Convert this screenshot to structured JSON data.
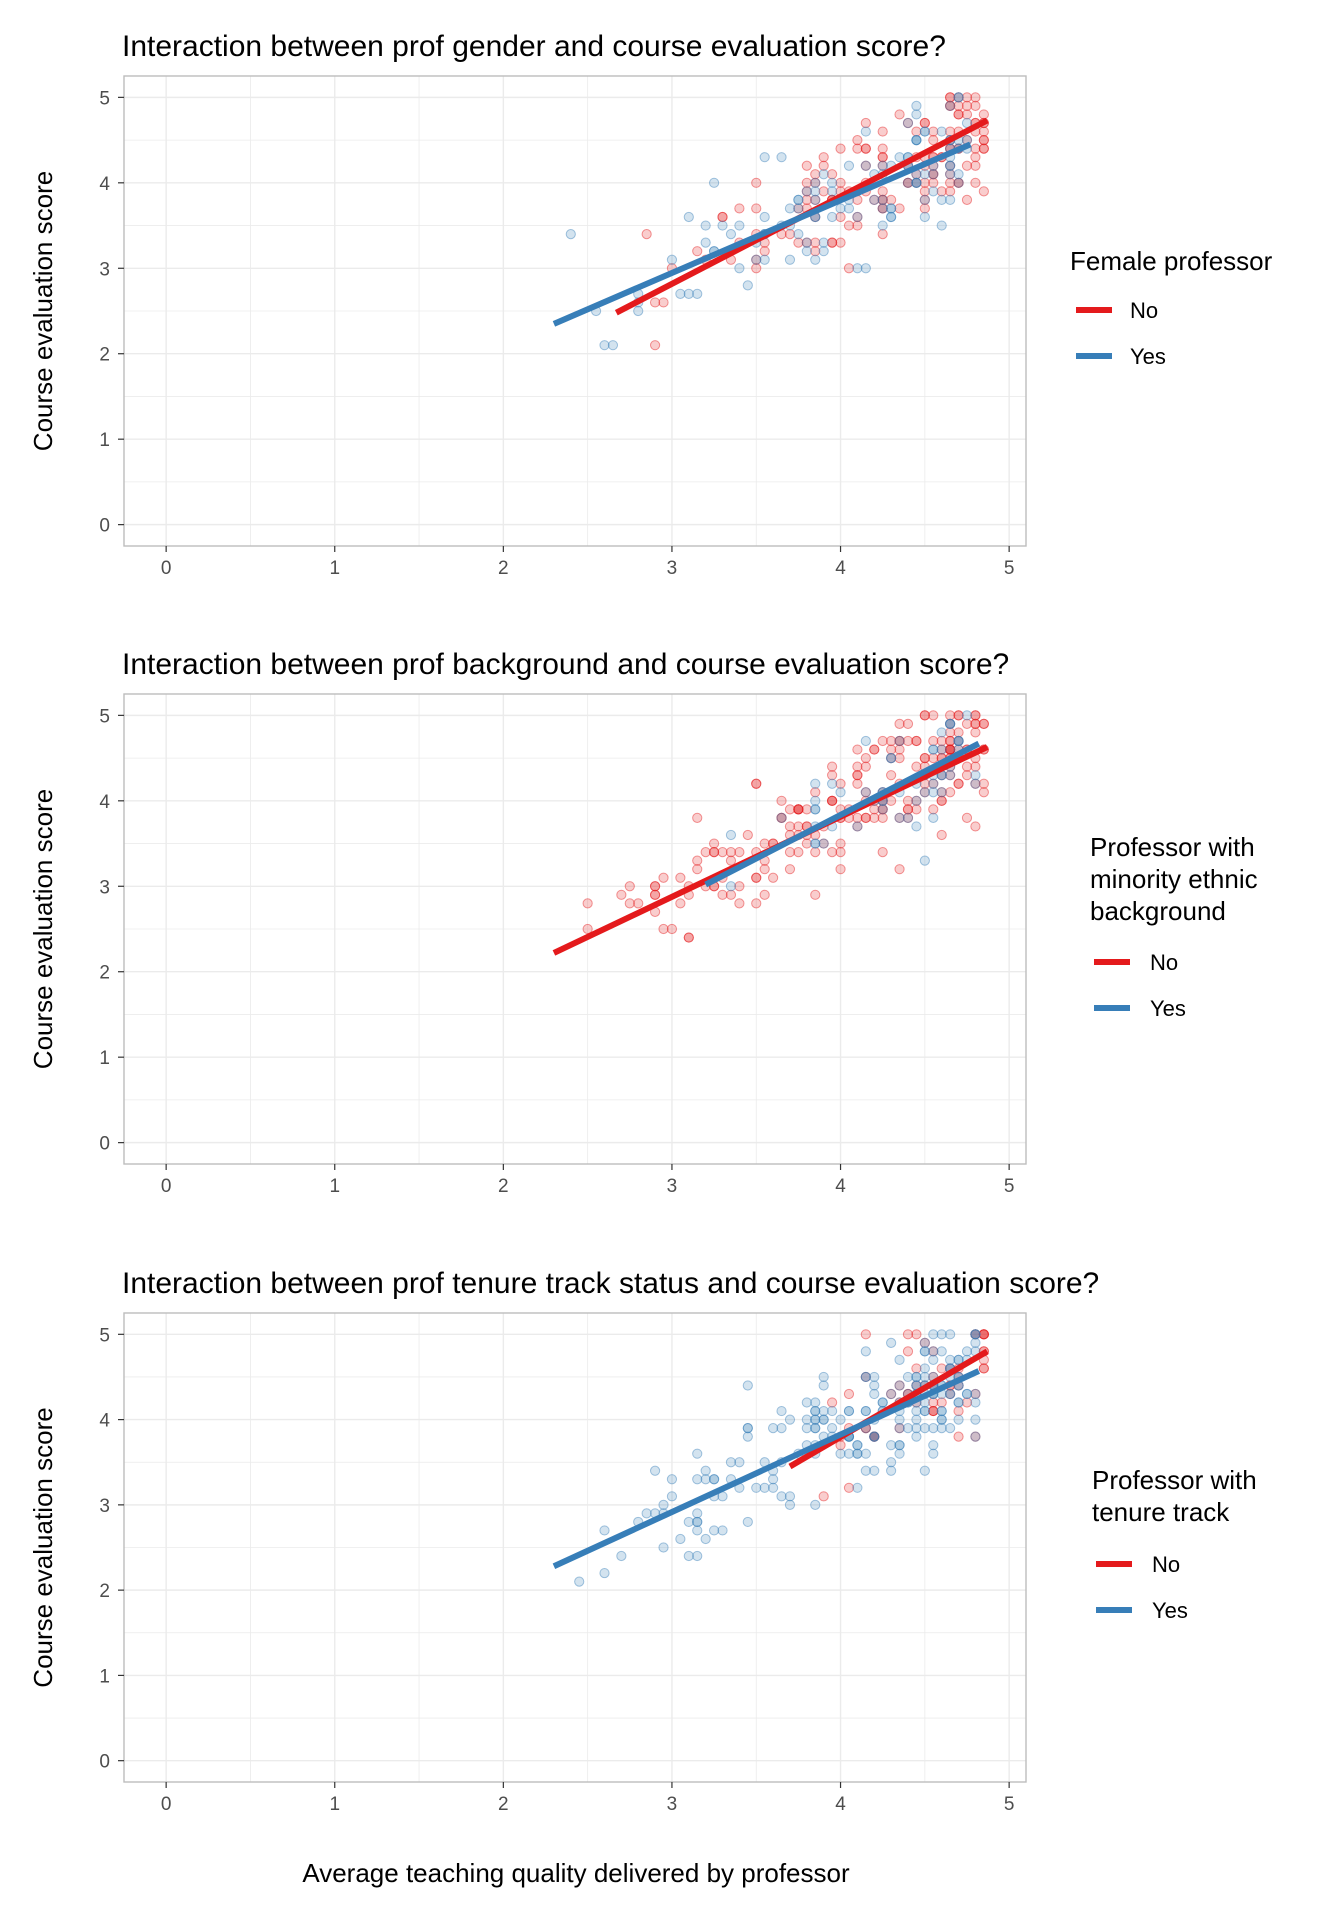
{
  "figure": {
    "xlabel": "Average teaching quality delivered by professor",
    "colors": {
      "no": "#e41a1c",
      "yes": "#377eb8",
      "grid": "#ebebeb",
      "panel_border": "#bdbdbd"
    }
  },
  "chart_data": [
    {
      "type": "scatter",
      "title": "Interaction between prof gender and course evaluation score?",
      "xlabel": "Average teaching quality delivered by professor",
      "ylabel": "Course evaluation score",
      "xlim": [
        -0.25,
        5.1
      ],
      "ylim": [
        -0.25,
        5.25
      ],
      "xticks": [
        "0",
        "1",
        "2",
        "3",
        "4",
        "5"
      ],
      "yticks": [
        "0",
        "1",
        "2",
        "3",
        "4",
        "5"
      ],
      "grid": true,
      "legend": {
        "title": [
          "Female professor"
        ],
        "position": "right",
        "items": [
          "No",
          "Yes"
        ]
      },
      "series": [
        {
          "name": "No",
          "color": "#e41a1c",
          "fit": [
            [
              2.67,
              2.48
            ],
            [
              4.87,
              4.73
            ]
          ],
          "cloud": {
            "x_range": [
              2.67,
              4.87
            ],
            "slope": 1.02,
            "intercept": -0.25,
            "spread": 0.35,
            "count": 150
          }
        },
        {
          "name": "Yes",
          "color": "#377eb8",
          "fit": [
            [
              2.3,
              2.35
            ],
            [
              4.77,
              4.45
            ]
          ],
          "cloud": {
            "x_range": [
              2.3,
              4.77
            ],
            "slope": 0.85,
            "intercept": 0.4,
            "spread": 0.35,
            "count": 120
          }
        }
      ]
    },
    {
      "type": "scatter",
      "title": "Interaction between prof background and course evaluation score?",
      "xlabel": "Average teaching quality delivered by professor",
      "ylabel": "Course evaluation score",
      "xlim": [
        -0.25,
        5.1
      ],
      "ylim": [
        -0.25,
        5.25
      ],
      "xticks": [
        "0",
        "1",
        "2",
        "3",
        "4",
        "5"
      ],
      "yticks": [
        "0",
        "1",
        "2",
        "3",
        "4",
        "5"
      ],
      "grid": true,
      "legend": {
        "title": [
          "Professor with",
          "minority ethnic",
          "background"
        ],
        "position": "right",
        "items": [
          "No",
          "Yes"
        ]
      },
      "series": [
        {
          "name": "No",
          "color": "#e41a1c",
          "fit": [
            [
              2.3,
              2.22
            ],
            [
              4.87,
              4.63
            ]
          ],
          "cloud": {
            "x_range": [
              2.3,
              4.87
            ],
            "slope": 0.95,
            "intercept": 0.05,
            "spread": 0.35,
            "count": 210
          }
        },
        {
          "name": "Yes",
          "color": "#377eb8",
          "fit": [
            [
              3.2,
              3.02
            ],
            [
              4.82,
              4.67
            ]
          ],
          "cloud": {
            "x_range": [
              3.2,
              4.82
            ],
            "slope": 1.0,
            "intercept": -0.2,
            "spread": 0.35,
            "count": 60
          }
        }
      ]
    },
    {
      "type": "scatter",
      "title": "Interaction between prof tenure track status and course evaluation score?",
      "xlabel": "Average teaching quality delivered by professor",
      "ylabel": "Course evaluation score",
      "xlim": [
        -0.25,
        5.1
      ],
      "ylim": [
        -0.25,
        5.25
      ],
      "xticks": [
        "0",
        "1",
        "2",
        "3",
        "4",
        "5"
      ],
      "yticks": [
        "0",
        "1",
        "2",
        "3",
        "4",
        "5"
      ],
      "grid": true,
      "legend": {
        "title": [
          "Professor with",
          "tenure track"
        ],
        "position": "right",
        "items": [
          "No",
          "Yes"
        ]
      },
      "series": [
        {
          "name": "No",
          "color": "#e41a1c",
          "fit": [
            [
              3.7,
              3.45
            ],
            [
              4.87,
              4.8
            ]
          ],
          "cloud": {
            "x_range": [
              3.7,
              4.87
            ],
            "slope": 1.15,
            "intercept": -0.8,
            "spread": 0.35,
            "count": 60
          }
        },
        {
          "name": "Yes",
          "color": "#377eb8",
          "fit": [
            [
              2.3,
              2.28
            ],
            [
              4.82,
              4.57
            ]
          ],
          "cloud": {
            "x_range": [
              2.3,
              4.82
            ],
            "slope": 0.91,
            "intercept": 0.19,
            "spread": 0.35,
            "count": 210
          }
        }
      ]
    }
  ]
}
